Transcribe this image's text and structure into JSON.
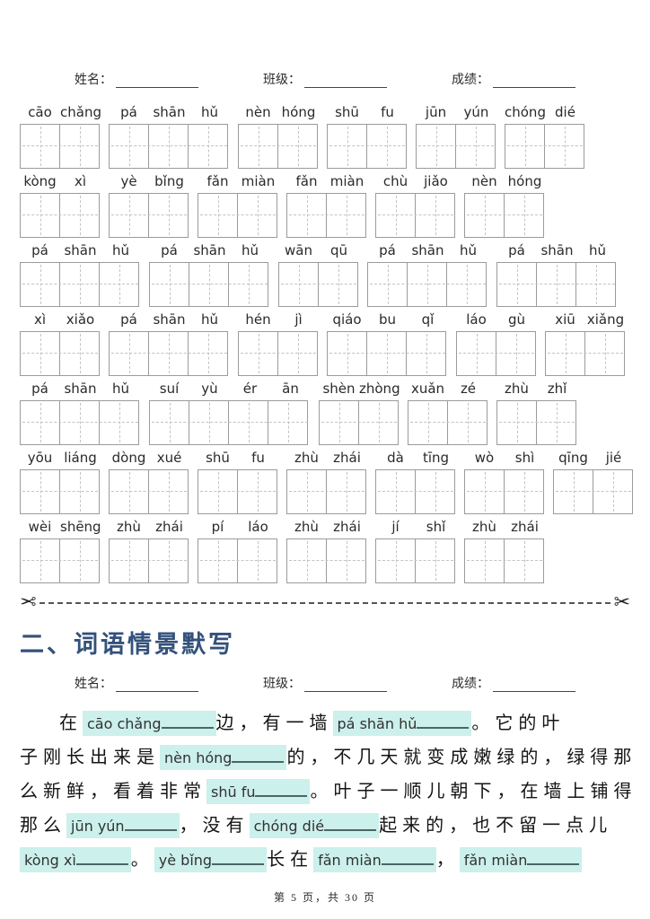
{
  "page": {
    "footer": "第 5 页，共 30 页"
  },
  "name_bar": {
    "name_label": "姓名：",
    "class_label": "班级：",
    "score_label": "成绩："
  },
  "practice_rows": [
    [
      [
        "cāo",
        "chǎng"
      ],
      [
        "pá",
        "shān",
        "hǔ"
      ],
      [
        "nèn",
        "hóng"
      ],
      [
        "shū",
        "fu"
      ],
      [
        "jūn",
        "yún"
      ],
      [
        "chóng",
        "dié"
      ]
    ],
    [
      [
        "kòng",
        "xì"
      ],
      [
        "yè",
        "bǐng"
      ],
      [
        "fǎn",
        "miàn"
      ],
      [
        "fǎn",
        "miàn"
      ],
      [
        "chù",
        "jiǎo"
      ],
      [
        "nèn",
        "hóng"
      ]
    ],
    [
      [
        "pá",
        "shān",
        "hǔ"
      ],
      [
        "pá",
        "shān",
        "hǔ"
      ],
      [
        "wān",
        "qū"
      ],
      [
        "pá",
        "shān",
        "hǔ"
      ],
      [
        "pá",
        "shān",
        "hǔ"
      ]
    ],
    [
      [
        "xì",
        "xiǎo"
      ],
      [
        "pá",
        "shān",
        "hǔ"
      ],
      [
        "hén",
        "jì"
      ],
      [
        "qiáo",
        "bu",
        "qǐ"
      ],
      [
        "láo",
        "gù"
      ],
      [
        "xiū",
        "xiǎng"
      ]
    ],
    [
      [
        "pá",
        "shān",
        "hǔ"
      ],
      [
        "suí",
        "yù",
        "ér",
        "ān"
      ],
      [
        "shèn",
        "zhòng"
      ],
      [
        "xuǎn",
        "zé"
      ],
      [
        "zhù",
        "zhǐ"
      ]
    ],
    [
      [
        "yōu",
        "liáng"
      ],
      [
        "dòng",
        "xué"
      ],
      [
        "shū",
        "fu"
      ],
      [
        "zhù",
        "zhái"
      ],
      [
        "dà",
        "tīng"
      ],
      [
        "wò",
        "shì"
      ],
      [
        "qīng",
        "jié"
      ]
    ],
    [
      [
        "wèi",
        "shēng"
      ],
      [
        "zhù",
        "zhái"
      ],
      [
        "pí",
        "láo"
      ],
      [
        "zhù",
        "zhái"
      ],
      [
        "jí",
        "shǐ"
      ],
      [
        "zhù",
        "zhái"
      ]
    ]
  ],
  "cut_line": {
    "scissors_icon": "✂"
  },
  "section2": {
    "title": "二、词语情景默写"
  },
  "passage": {
    "lines": [
      [
        {
          "t": "text",
          "v": "在"
        },
        {
          "t": "blank",
          "v": "cāo chǎng"
        },
        {
          "t": "text",
          "v": "边，有一墙"
        },
        {
          "t": "blank",
          "v": "pá shān hǔ"
        },
        {
          "t": "text",
          "v": "。它的叶"
        }
      ],
      [
        {
          "t": "text",
          "v": "子刚长出来是"
        },
        {
          "t": "blank",
          "v": "nèn hóng"
        },
        {
          "t": "text",
          "v": "的，不几天就变成嫩绿的，绿得那"
        }
      ],
      [
        {
          "t": "text",
          "v": "么新鲜，看着非常"
        },
        {
          "t": "blank",
          "v": "shū fu"
        },
        {
          "t": "text",
          "v": "。叶子一顺儿朝下，在墙上铺得"
        }
      ],
      [
        {
          "t": "text",
          "v": "那么"
        },
        {
          "t": "blank",
          "v": "jūn yún"
        },
        {
          "t": "text",
          "v": "，没有"
        },
        {
          "t": "blank",
          "v": "chóng dié"
        },
        {
          "t": "text",
          "v": "起来的，也不留一点儿"
        }
      ],
      [
        {
          "t": "blank",
          "v": "kòng xì"
        },
        {
          "t": "text",
          "v": "。"
        },
        {
          "t": "blank",
          "v": "yè bǐng"
        },
        {
          "t": "text",
          "v": "长在"
        },
        {
          "t": "blank",
          "v": "fǎn miàn"
        },
        {
          "t": "text",
          "v": "，"
        },
        {
          "t": "blank",
          "v": "fǎn miàn"
        }
      ]
    ]
  },
  "colors": {
    "highlight": "#ccf0eb",
    "underline": "#4d6663",
    "section_title": "#33517b",
    "grid_border": "#9b9b9b",
    "grid_dash": "#c3c3c3"
  }
}
